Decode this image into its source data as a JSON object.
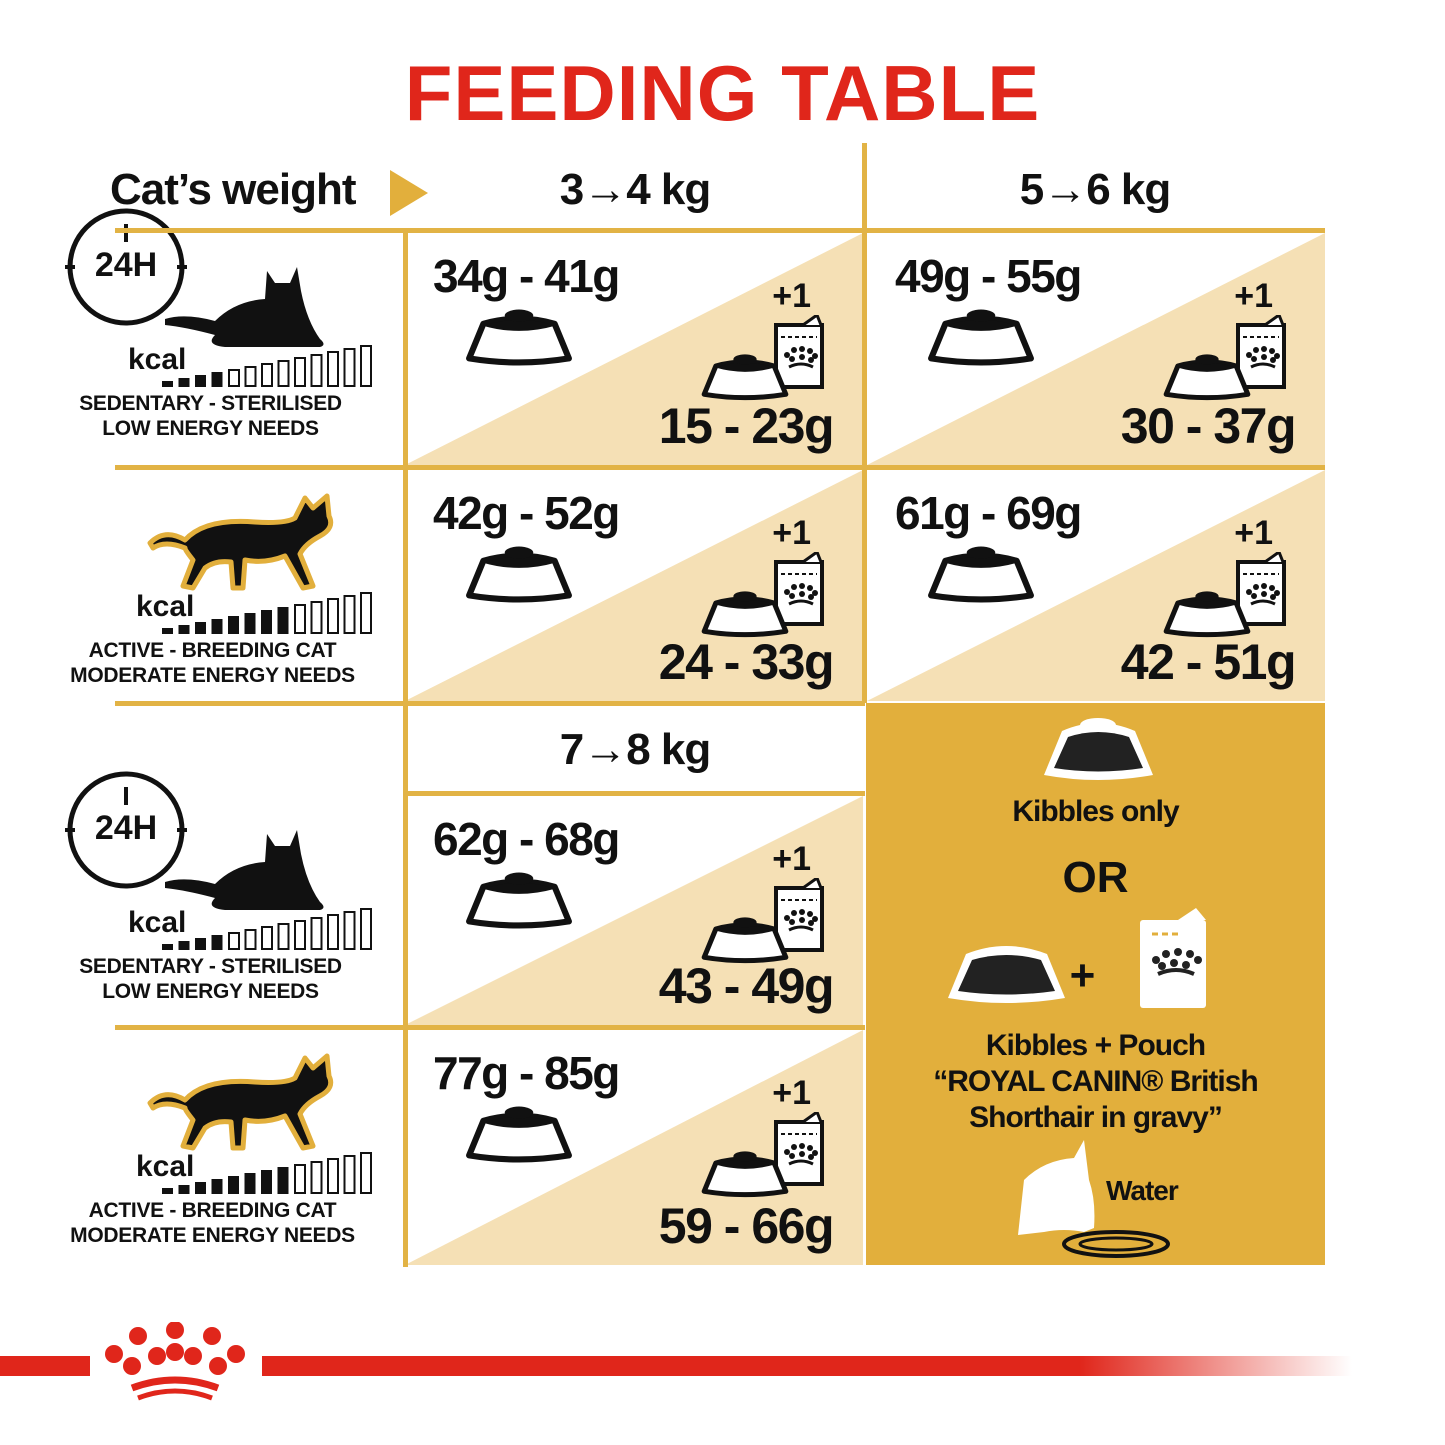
{
  "title": "FEEDING TABLE",
  "header": {
    "cats_weight_label": "Cat’s weight",
    "weights": [
      "3→4 kg",
      "5→6 kg",
      "7→8 kg"
    ]
  },
  "profiles": {
    "sedentary": {
      "kcal": "kcal",
      "line1": "SEDENTARY - STERILISED",
      "line2": "LOW ENERGY NEEDS",
      "clock": "24H",
      "energy_level": 4
    },
    "active": {
      "kcal": "kcal",
      "line1": "ACTIVE - BREEDING CAT",
      "line2": "MODERATE ENERGY NEEDS",
      "energy_level": 8
    }
  },
  "cells": [
    {
      "weight": "3→4 kg",
      "profile": "sedentary",
      "kibbles_only": "34g - 41g",
      "pouch_count": "+1",
      "kibbles_with_pouch": "15 - 23g"
    },
    {
      "weight": "5→6 kg",
      "profile": "sedentary",
      "kibbles_only": "49g - 55g",
      "pouch_count": "+1",
      "kibbles_with_pouch": "30 - 37g"
    },
    {
      "weight": "3→4 kg",
      "profile": "active",
      "kibbles_only": "42g - 52g",
      "pouch_count": "+1",
      "kibbles_with_pouch": "24 - 33g"
    },
    {
      "weight": "5→6 kg",
      "profile": "active",
      "kibbles_only": "61g - 69g",
      "pouch_count": "+1",
      "kibbles_with_pouch": "42 - 51g"
    },
    {
      "weight": "7→8 kg",
      "profile": "sedentary",
      "kibbles_only": "62g - 68g",
      "pouch_count": "+1",
      "kibbles_with_pouch": "43 - 49g"
    },
    {
      "weight": "7→8 kg",
      "profile": "active",
      "kibbles_only": "77g - 85g",
      "pouch_count": "+1",
      "kibbles_with_pouch": "59 - 66g"
    }
  ],
  "legend": {
    "kibbles_only": "Kibbles only",
    "or": "OR",
    "plus": "+",
    "kibbles_pouch_line1": "Kibbles + Pouch",
    "kibbles_pouch_line2": "“ROYAL CANIN® British",
    "kibbles_pouch_line3": "Shorthair in gravy”",
    "water": "Water"
  },
  "colors": {
    "brand_red": "#e0261b",
    "gold": "#e2af3c",
    "beige": "#f5e0b5",
    "line_gold": "#e2b345"
  },
  "icons": [
    "24h-clock-icon",
    "lying-cat-icon",
    "walking-cat-icon",
    "kcal-bars-icon",
    "bowl-icon",
    "pouch-icon",
    "cat-drinking-icon",
    "royal-canin-crown-logo"
  ]
}
